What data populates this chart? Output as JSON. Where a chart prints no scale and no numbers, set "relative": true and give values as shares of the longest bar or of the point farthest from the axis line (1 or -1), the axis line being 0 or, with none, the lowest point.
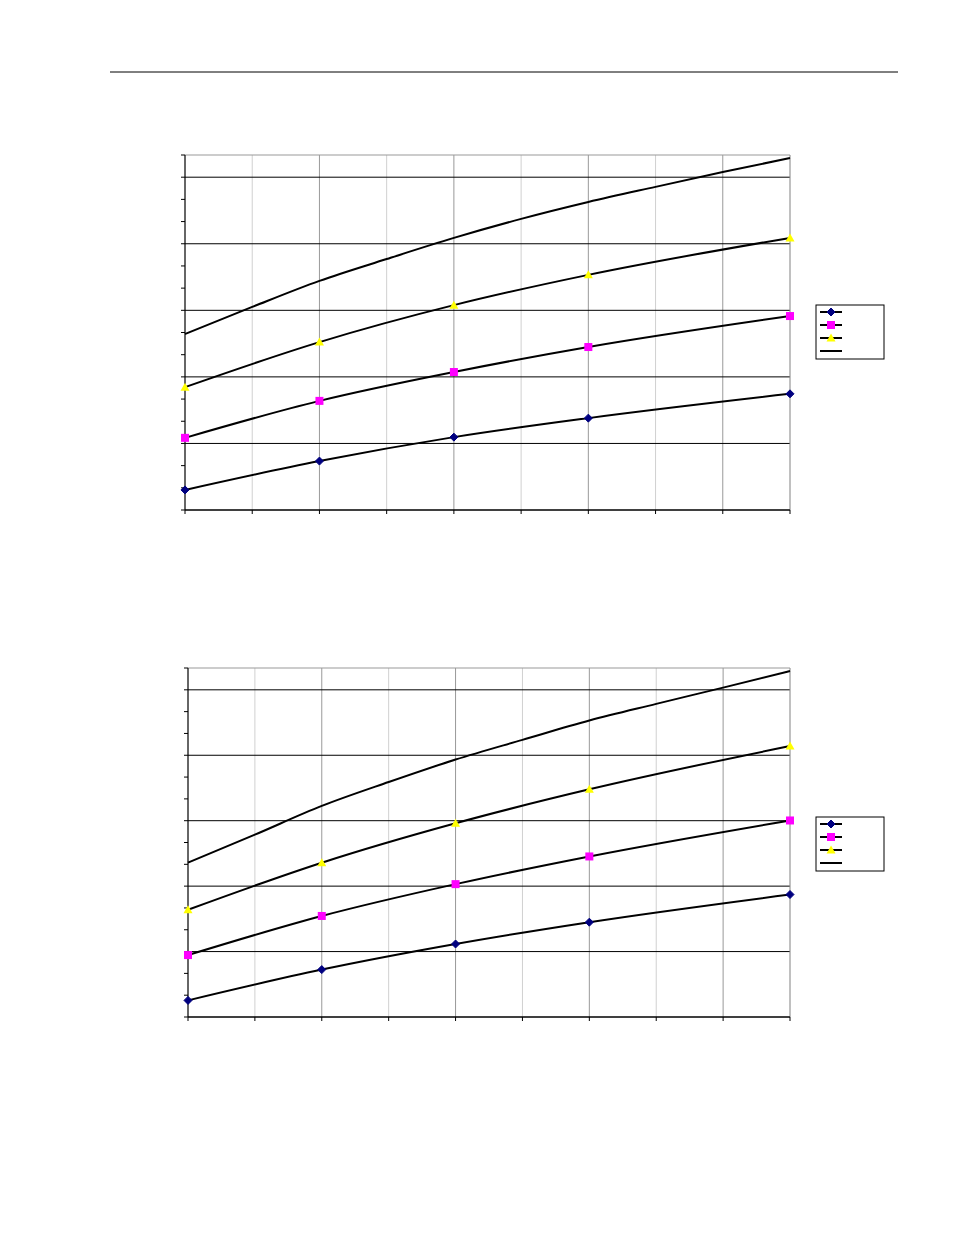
{
  "chart_data": [
    {
      "type": "line",
      "relative": true,
      "grid": true,
      "categories": [
        null,
        null,
        null,
        null,
        null,
        null,
        null,
        null,
        null,
        null
      ],
      "series": [
        {
          "color": "#000080",
          "marker": "diamond",
          "values": [
            0.057,
            null,
            0.139,
            null,
            0.207,
            null,
            0.261,
            null,
            null,
            0.33
          ]
        },
        {
          "color": "#ff00ff",
          "marker": "square",
          "values": [
            0.205,
            null,
            0.31,
            null,
            0.392,
            null,
            0.463,
            null,
            null,
            0.551
          ]
        },
        {
          "color": "#ffff00",
          "marker": "triangle",
          "values": [
            0.349,
            null,
            0.477,
            null,
            0.582,
            null,
            0.668,
            null,
            null,
            0.773
          ]
        },
        {
          "color": "#000000",
          "marker": "none",
          "values": [
            0.5,
            0.577,
            0.651,
            0.713,
            0.773,
            0.827,
            0.875,
            0.918,
            0.96,
            1
          ]
        }
      ]
    },
    {
      "type": "line",
      "relative": true,
      "grid": true,
      "categories": [
        null,
        null,
        null,
        null,
        null,
        null,
        null,
        null,
        null,
        null
      ],
      "series": [
        {
          "color": "#000080",
          "marker": "diamond",
          "values": [
            0.048,
            null,
            0.137,
            null,
            0.211,
            null,
            0.274,
            null,
            null,
            0.354
          ]
        },
        {
          "color": "#ff00ff",
          "marker": "square",
          "values": [
            0.179,
            null,
            0.292,
            null,
            0.384,
            null,
            0.464,
            null,
            null,
            0.568
          ]
        },
        {
          "color": "#ffff00",
          "marker": "triangle",
          "values": [
            0.31,
            null,
            0.446,
            null,
            0.56,
            null,
            0.658,
            null,
            null,
            0.783
          ]
        },
        {
          "color": "#000000",
          "marker": "none",
          "values": [
            0.446,
            0.527,
            0.61,
            0.679,
            0.744,
            0.801,
            0.857,
            0.905,
            0.952,
            1
          ]
        }
      ]
    }
  ]
}
